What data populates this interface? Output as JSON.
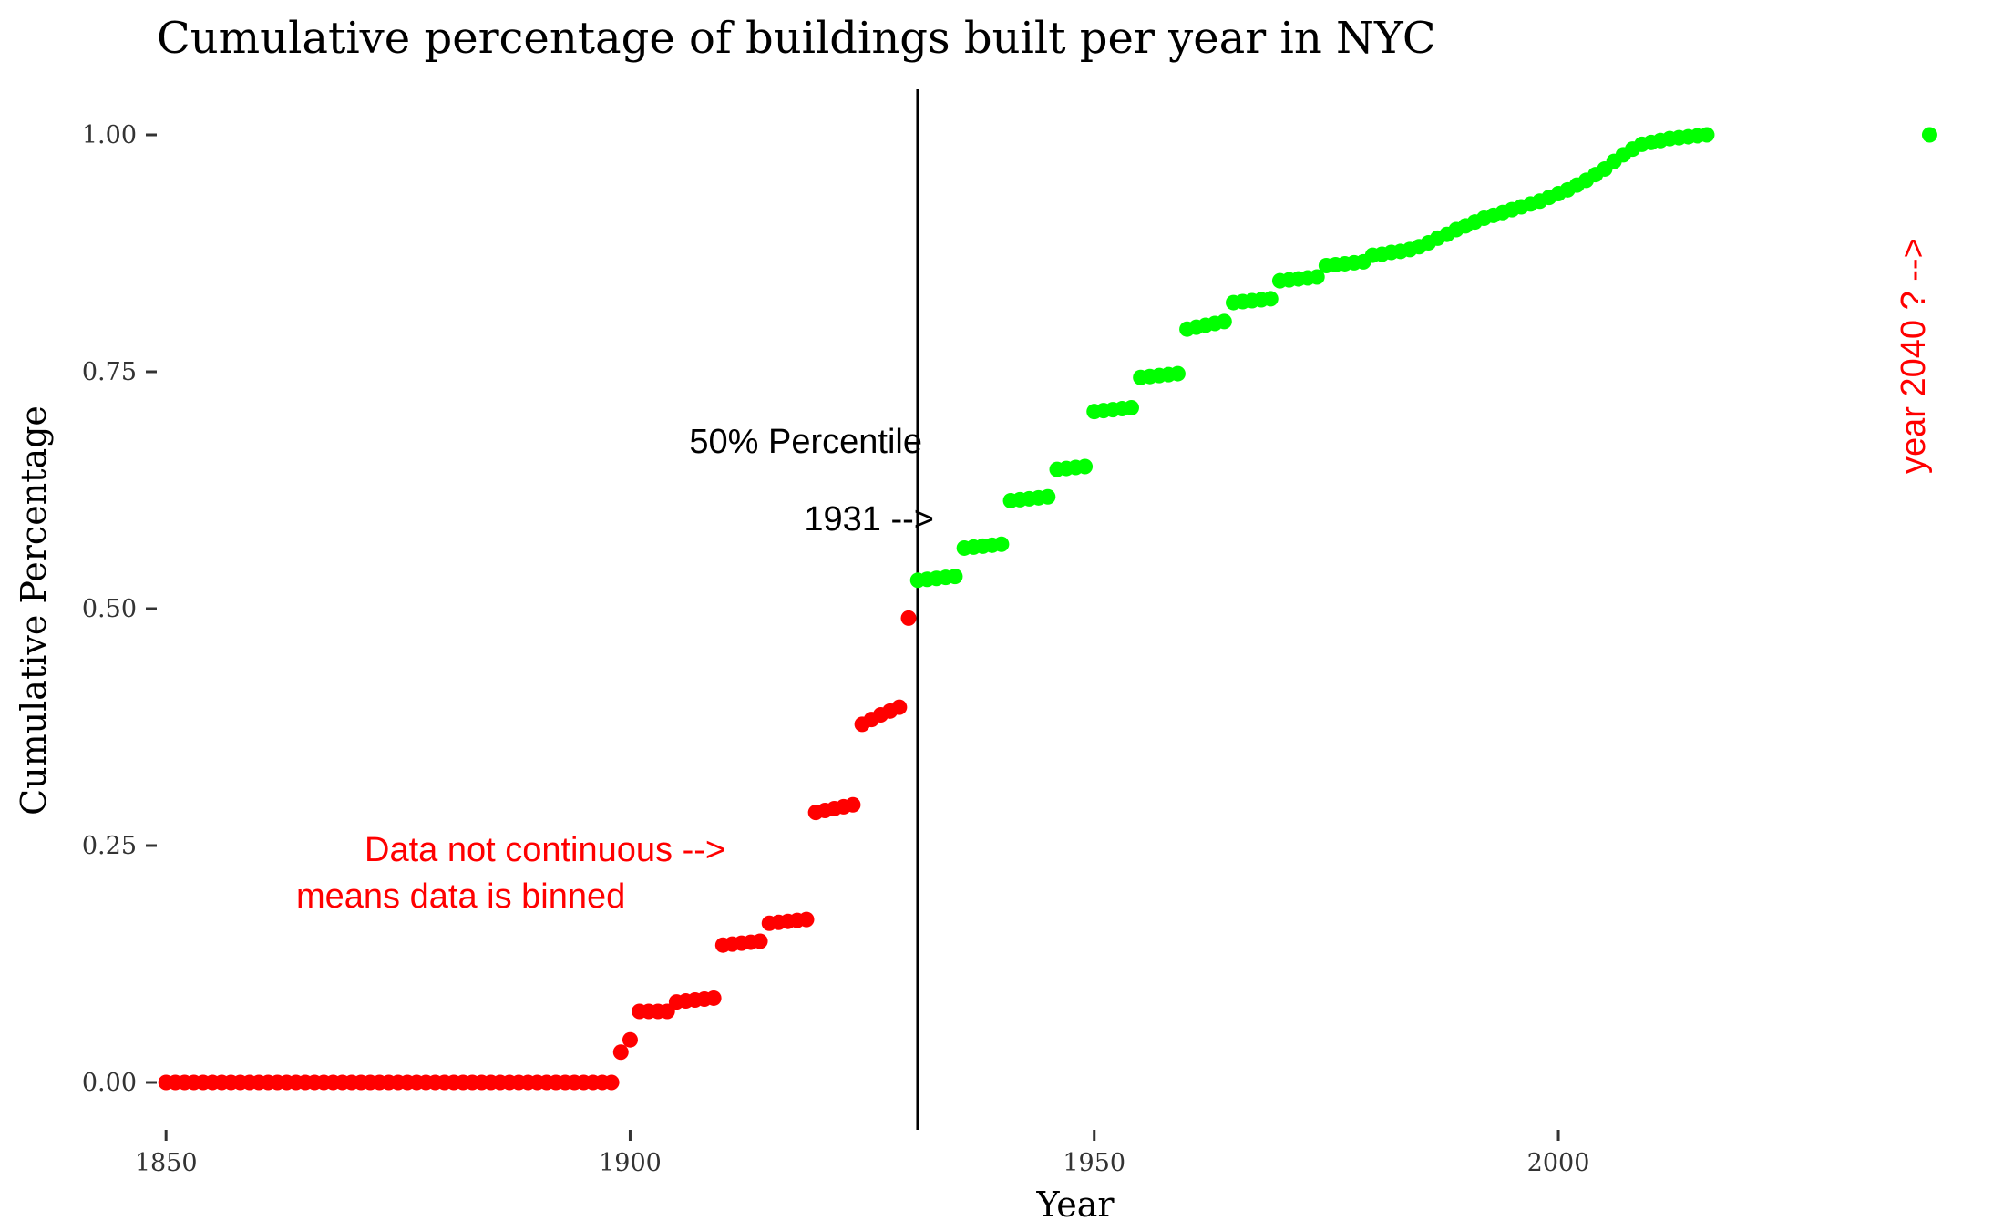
{
  "chart_data": {
    "type": "scatter",
    "title": "Cumulative percentage of buildings built per year in NYC",
    "xlabel": "Year",
    "ylabel": "Cumulative Percentage",
    "xlim": [
      1849,
      2043
    ],
    "ylim": [
      -0.05,
      1.05
    ],
    "x_ticks": [
      1850,
      1900,
      1950,
      2000
    ],
    "x_tick_labels": [
      "1850",
      "1900",
      "1950",
      "2000"
    ],
    "y_ticks": [
      0,
      0.25,
      0.5,
      0.75,
      1.0
    ],
    "y_tick_labels": [
      "0.00",
      "0.25",
      "0.50",
      "0.75",
      "1.00"
    ],
    "grid": false,
    "colors": {
      "below_median": "#ff0000",
      "above_median": "#00ff00",
      "vline": "#000000"
    },
    "vline": {
      "x": 1931
    },
    "series": [
      {
        "color": "#ff0000",
        "x": [
          1850,
          1851,
          1852,
          1853,
          1854,
          1855,
          1856,
          1857,
          1858,
          1859,
          1860,
          1861,
          1862,
          1863,
          1864,
          1865,
          1866,
          1867,
          1868,
          1869,
          1870,
          1871,
          1872,
          1873,
          1874,
          1875,
          1876,
          1877,
          1878,
          1879,
          1880,
          1881,
          1882,
          1883,
          1884,
          1885,
          1886,
          1887,
          1888,
          1889,
          1890,
          1891,
          1892,
          1893,
          1894,
          1895,
          1896,
          1897,
          1898,
          1899,
          1900,
          1901,
          1902,
          1903,
          1904,
          1905,
          1906,
          1907,
          1908,
          1909,
          1910,
          1911,
          1912,
          1913,
          1914,
          1915,
          1916,
          1917,
          1918,
          1919,
          1920,
          1921,
          1922,
          1923,
          1924,
          1925,
          1926,
          1927,
          1928,
          1929,
          1930
        ],
        "y": [
          0,
          0,
          0,
          0,
          0,
          0,
          0,
          0,
          0,
          0,
          0,
          0,
          0,
          0,
          0,
          0,
          0,
          0,
          0,
          0,
          0,
          0,
          0,
          0,
          0,
          0,
          0,
          0,
          0,
          0,
          0,
          0,
          0,
          0,
          0,
          0,
          0,
          0,
          0,
          0,
          0,
          0,
          0,
          0,
          0,
          0,
          0,
          0,
          0,
          0.032,
          0.045,
          0.075,
          0.075,
          0.075,
          0.075,
          0.085,
          0.086,
          0.087,
          0.088,
          0.089,
          0.145,
          0.146,
          0.147,
          0.148,
          0.149,
          0.168,
          0.169,
          0.17,
          0.171,
          0.172,
          0.285,
          0.287,
          0.289,
          0.291,
          0.293,
          0.378,
          0.383,
          0.388,
          0.392,
          0.396,
          0.49
        ]
      },
      {
        "color": "#00ff00",
        "x": [
          1931,
          1932,
          1933,
          1934,
          1935,
          1936,
          1937,
          1938,
          1939,
          1940,
          1941,
          1942,
          1943,
          1944,
          1945,
          1946,
          1947,
          1948,
          1949,
          1950,
          1951,
          1952,
          1953,
          1954,
          1955,
          1956,
          1957,
          1958,
          1959,
          1960,
          1961,
          1962,
          1963,
          1964,
          1965,
          1966,
          1967,
          1968,
          1969,
          1970,
          1971,
          1972,
          1973,
          1974,
          1975,
          1976,
          1977,
          1978,
          1979,
          1980,
          1981,
          1982,
          1983,
          1984,
          1985,
          1986,
          1987,
          1988,
          1989,
          1990,
          1991,
          1992,
          1993,
          1994,
          1995,
          1996,
          1997,
          1998,
          1999,
          2000,
          2001,
          2002,
          2003,
          2004,
          2005,
          2006,
          2007,
          2008,
          2009,
          2010,
          2011,
          2012,
          2013,
          2014,
          2015,
          2016,
          2040
        ],
        "y": [
          0.53,
          0.531,
          0.532,
          0.533,
          0.534,
          0.564,
          0.565,
          0.566,
          0.567,
          0.568,
          0.614,
          0.615,
          0.616,
          0.617,
          0.618,
          0.647,
          0.648,
          0.649,
          0.65,
          0.708,
          0.709,
          0.71,
          0.711,
          0.712,
          0.744,
          0.745,
          0.746,
          0.747,
          0.748,
          0.795,
          0.797,
          0.799,
          0.801,
          0.803,
          0.823,
          0.824,
          0.825,
          0.826,
          0.827,
          0.846,
          0.847,
          0.848,
          0.849,
          0.85,
          0.862,
          0.863,
          0.864,
          0.865,
          0.866,
          0.873,
          0.874,
          0.876,
          0.877,
          0.879,
          0.882,
          0.886,
          0.891,
          0.895,
          0.9,
          0.904,
          0.908,
          0.912,
          0.915,
          0.918,
          0.921,
          0.924,
          0.927,
          0.93,
          0.934,
          0.938,
          0.942,
          0.947,
          0.952,
          0.958,
          0.964,
          0.972,
          0.979,
          0.985,
          0.99,
          0.992,
          0.994,
          0.996,
          0.997,
          0.998,
          0.999,
          1.0,
          1.0
        ]
      }
    ],
    "annotations": {
      "median_label": "50% Percentile",
      "median_year": "1931 -->",
      "binned_line1": "Data not continuous -->",
      "binned_line2": "means data is binned",
      "future_label": "year 2040 ? -->"
    }
  }
}
